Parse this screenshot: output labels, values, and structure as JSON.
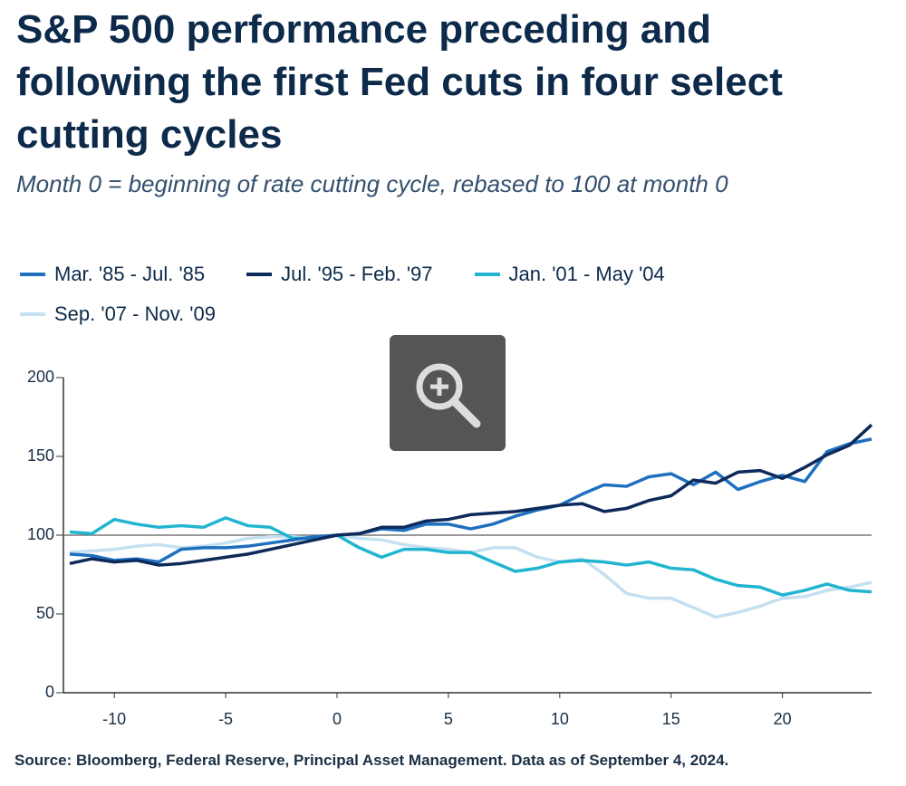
{
  "chart_data": {
    "type": "line",
    "title": "S&P 500 performance preceding and following the first Fed cuts in four select cutting cycles",
    "subtitle": "Month 0 = beginning of rate cutting cycle, rebased to 100 at month 0",
    "source": "Source: Bloomberg, Federal Reserve, Principal Asset Management. Data as of September 4, 2024.",
    "x": [
      -12,
      -11,
      -10,
      -9,
      -8,
      -7,
      -6,
      -5,
      -4,
      -3,
      -2,
      -1,
      0,
      1,
      2,
      3,
      4,
      5,
      6,
      7,
      8,
      9,
      10,
      11,
      12,
      13,
      14,
      15,
      16,
      17,
      18,
      19,
      20,
      21,
      22,
      23,
      24
    ],
    "series": [
      {
        "name": "Mar. '85 - Jul. '85",
        "color": "#1f6fbf",
        "values": [
          88,
          87,
          84,
          85,
          83,
          91,
          92,
          92,
          93,
          95,
          97,
          99,
          100,
          101,
          104,
          103,
          107,
          107,
          104,
          107,
          112,
          116,
          119,
          126,
          132,
          131,
          137,
          139,
          132,
          140,
          129,
          134,
          138,
          134,
          153,
          158,
          161
        ]
      },
      {
        "name": "Jul. '95 - Feb. '97",
        "color": "#0d2a5a",
        "values": [
          82,
          85,
          83,
          84,
          81,
          82,
          84,
          86,
          88,
          91,
          94,
          97,
          100,
          101,
          105,
          105,
          109,
          110,
          113,
          114,
          115,
          117,
          119,
          120,
          115,
          117,
          122,
          125,
          135,
          133,
          140,
          141,
          136,
          143,
          151,
          157,
          170
        ]
      },
      {
        "name": "Jan. '01 - May '04",
        "color": "#21b5d0",
        "values": [
          102,
          101,
          110,
          107,
          105,
          106,
          105,
          111,
          106,
          105,
          98,
          98,
          100,
          92,
          86,
          91,
          91,
          89,
          89,
          83,
          77,
          79,
          83,
          84,
          83,
          81,
          83,
          79,
          78,
          72,
          68,
          67,
          62,
          65,
          69,
          65,
          64
        ]
      },
      {
        "name": "Sep. '07 - Nov. '09",
        "color": "#c5e0f0",
        "values": [
          89,
          90,
          91,
          93,
          94,
          92,
          93,
          95,
          98,
          99,
          99,
          98,
          100,
          98,
          97,
          94,
          92,
          91,
          89,
          92,
          92,
          86,
          83,
          85,
          75,
          63,
          60,
          60,
          54,
          48,
          51,
          55,
          60,
          61,
          65,
          67,
          70
        ]
      }
    ],
    "reference_line": 100,
    "xlim": [
      -12,
      24
    ],
    "xticks": [
      -10,
      -5,
      0,
      5,
      10,
      15,
      20
    ],
    "ylim": [
      0,
      200
    ],
    "yticks": [
      0,
      50,
      100,
      150,
      200
    ]
  }
}
